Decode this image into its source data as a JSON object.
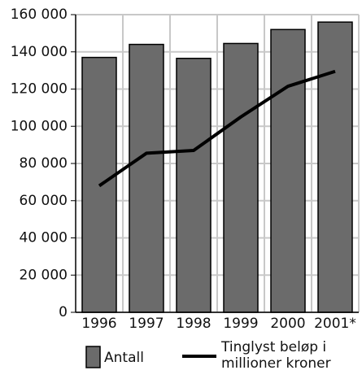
{
  "chart_data": {
    "type": "bar",
    "categories": [
      "1996",
      "1997",
      "1998",
      "1999",
      "2000",
      "2001*"
    ],
    "series": [
      {
        "name": "Antall",
        "type": "bar",
        "color": "#6b6b6b",
        "values": [
          137000,
          144000,
          136500,
          144500,
          152000,
          156000
        ]
      },
      {
        "name": "Tinglyst beløp i millioner kroner",
        "type": "line",
        "color": "#000000",
        "values": [
          68000,
          85500,
          87000,
          105000,
          121500,
          129500
        ]
      }
    ],
    "ylim": [
      0,
      160000
    ],
    "yticks": [
      {
        "value": 0,
        "label": "0"
      },
      {
        "value": 20000,
        "label": "20 000"
      },
      {
        "value": 40000,
        "label": "40 000"
      },
      {
        "value": 60000,
        "label": "60 000"
      },
      {
        "value": 80000,
        "label": "80 000"
      },
      {
        "value": 100000,
        "label": "100 000"
      },
      {
        "value": 120000,
        "label": "120 000"
      },
      {
        "value": 140000,
        "label": "140 000"
      },
      {
        "value": 160000,
        "label": "160 000"
      }
    ],
    "grid": true
  }
}
